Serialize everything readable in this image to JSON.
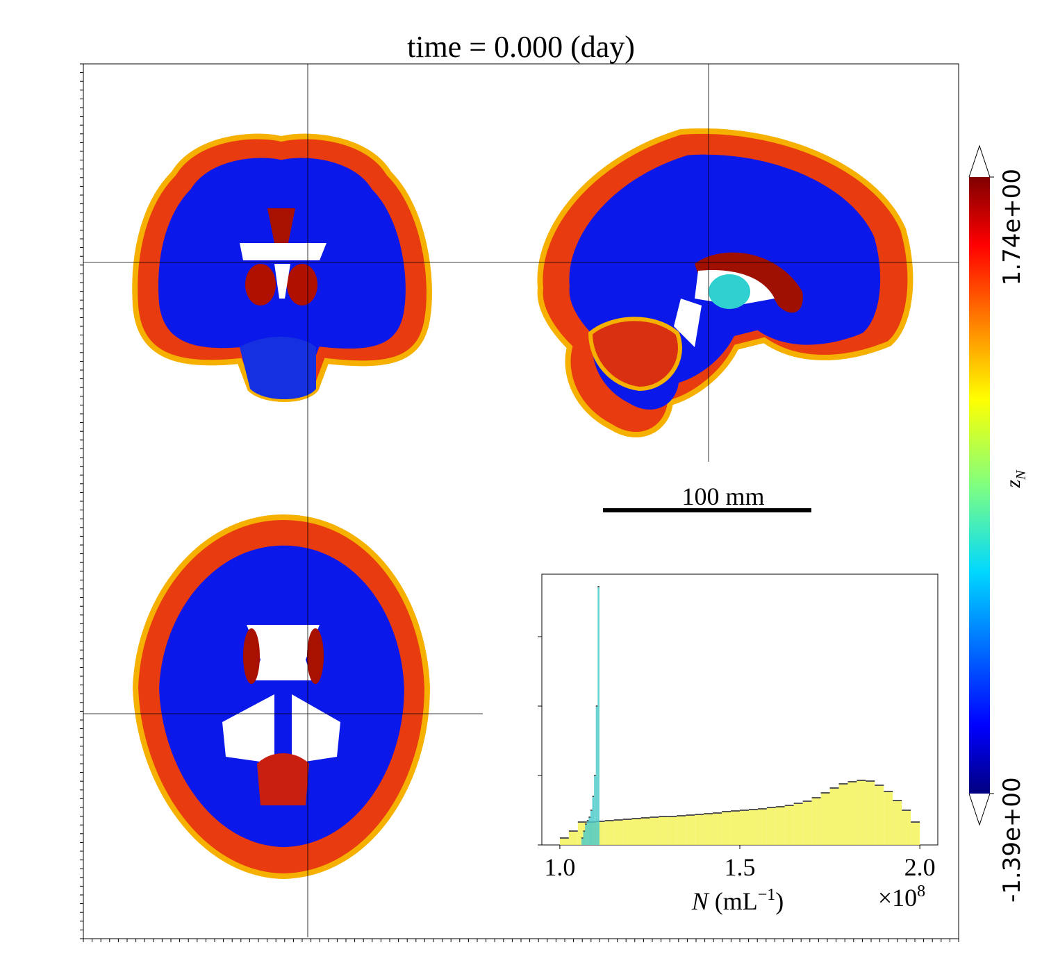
{
  "title": "time = 0.000 (day)",
  "scale_bar": {
    "label": "100 mm"
  },
  "colorbar": {
    "label": "z",
    "label_subscript": "N",
    "colormap": "jet",
    "lim": [
      -1.39,
      1.74
    ],
    "ticks": [
      {
        "value": -1.39,
        "label": "-1.39e+00"
      },
      {
        "value": 1.74,
        "label": "1.74e+00"
      }
    ]
  },
  "chart_data": {
    "type": "histogram",
    "xlabel": [
      "N",
      "(mL",
      "−1",
      ")"
    ],
    "offset_text": [
      "×10",
      "8"
    ],
    "xlim": [
      0.95,
      2.05
    ],
    "xticks": [
      {
        "value": 1,
        "label": "1.0"
      },
      {
        "value": 1.5,
        "label": "1.5"
      },
      {
        "value": 2,
        "label": "2.0"
      }
    ],
    "ylim": [
      0,
      3.9
    ],
    "yticks": [
      0,
      1,
      2,
      3
    ],
    "series": [
      {
        "color": "#f3f35a",
        "bins": [
          1.0,
          1.025,
          1.05,
          1.075,
          1.1,
          1.125,
          1.15,
          1.175,
          1.2,
          1.225,
          1.25,
          1.275,
          1.3,
          1.325,
          1.35,
          1.375,
          1.4,
          1.425,
          1.45,
          1.475,
          1.5,
          1.525,
          1.55,
          1.575,
          1.6,
          1.625,
          1.65,
          1.675,
          1.7,
          1.725,
          1.75,
          1.775,
          1.8,
          1.825,
          1.85,
          1.875,
          1.9,
          1.925,
          1.95,
          1.975,
          2.0
        ],
        "values": [
          0.1,
          0.2,
          0.33,
          0.33,
          0.34,
          0.35,
          0.36,
          0.37,
          0.38,
          0.39,
          0.4,
          0.41,
          0.41,
          0.42,
          0.43,
          0.44,
          0.45,
          0.46,
          0.48,
          0.49,
          0.5,
          0.51,
          0.52,
          0.54,
          0.55,
          0.57,
          0.6,
          0.63,
          0.68,
          0.75,
          0.82,
          0.88,
          0.91,
          0.93,
          0.92,
          0.86,
          0.77,
          0.64,
          0.5,
          0.33
        ]
      },
      {
        "color": "#4ccaca",
        "bins": [
          1.06,
          1.065,
          1.07,
          1.075,
          1.08,
          1.085,
          1.09,
          1.095,
          1.1,
          1.105,
          1.11
        ],
        "values": [
          0.1,
          0.2,
          0.3,
          0.35,
          0.4,
          0.5,
          0.7,
          1.0,
          2.0,
          3.72
        ]
      }
    ]
  }
}
